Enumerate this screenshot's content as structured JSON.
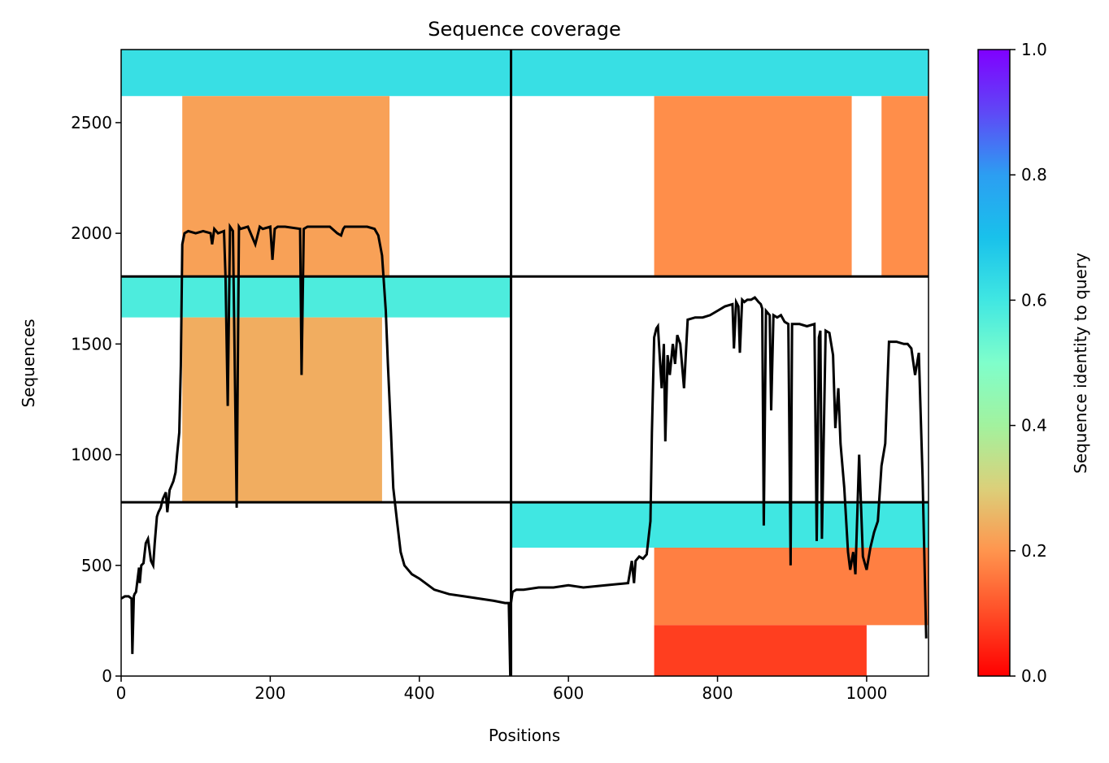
{
  "chart_data": {
    "type": "heatmap",
    "title": "Sequence coverage",
    "xlabel": "Positions",
    "ylabel": "Sequences",
    "xlim": [
      0,
      1083
    ],
    "ylim": [
      0,
      2830
    ],
    "xticks": [
      0,
      200,
      400,
      600,
      800,
      1000
    ],
    "yticks": [
      0,
      500,
      1000,
      1500,
      2000,
      2500
    ],
    "chain_boundaries_x": [
      523
    ],
    "group_boundaries_y": [
      785,
      1805
    ],
    "colorbar": {
      "label": "Sequence identity to query",
      "range": [
        0,
        1
      ],
      "ticks": [
        0.0,
        0.2,
        0.4,
        0.6,
        0.8,
        1.0
      ],
      "colormap": "rainbow_r"
    },
    "blocks": [
      {
        "x": [
          0,
          523
        ],
        "y": [
          2620,
          2830
        ],
        "identity": 0.62
      },
      {
        "x": [
          523,
          1083
        ],
        "y": [
          2620,
          2830
        ],
        "identity": 0.62
      },
      {
        "x": [
          82,
          360
        ],
        "y": [
          1805,
          2620
        ],
        "identity": 0.22
      },
      {
        "x": [
          715,
          980
        ],
        "y": [
          1805,
          2620
        ],
        "identity": 0.19
      },
      {
        "x": [
          1020,
          1083
        ],
        "y": [
          1805,
          2620
        ],
        "identity": 0.19
      },
      {
        "x": [
          0,
          523
        ],
        "y": [
          1620,
          1805
        ],
        "identity": 0.58
      },
      {
        "x": [
          82,
          350
        ],
        "y": [
          785,
          1620
        ],
        "identity": 0.24
      },
      {
        "x": [
          523,
          1083
        ],
        "y": [
          580,
          785
        ],
        "identity": 0.6
      },
      {
        "x": [
          715,
          1083
        ],
        "y": [
          230,
          580
        ],
        "identity": 0.17
      },
      {
        "x": [
          715,
          1000
        ],
        "y": [
          0,
          230
        ],
        "identity": 0.08
      }
    ],
    "coverage_line": {
      "x": [
        0,
        5,
        10,
        14,
        15,
        17,
        18,
        20,
        24,
        25,
        27,
        30,
        33,
        36,
        40,
        43,
        45,
        48,
        50,
        53,
        56,
        60,
        62,
        65,
        70,
        73,
        75,
        78,
        80,
        82,
        85,
        90,
        100,
        110,
        120,
        122,
        125,
        130,
        138,
        140,
        143,
        146,
        150,
        155,
        158,
        160,
        170,
        180,
        186,
        190,
        200,
        203,
        206,
        210,
        220,
        240,
        242,
        245,
        250,
        260,
        270,
        280,
        290,
        295,
        298,
        300,
        310,
        320,
        330,
        340,
        345,
        350,
        355,
        358,
        362,
        365,
        370,
        375,
        380,
        390,
        400,
        420,
        440,
        460,
        480,
        500,
        515,
        520,
        522,
        523,
        525,
        530,
        540,
        560,
        580,
        600,
        620,
        650,
        680,
        685,
        688,
        690,
        695,
        700,
        705,
        710,
        712,
        715,
        718,
        720,
        725,
        728,
        730,
        733,
        736,
        740,
        743,
        746,
        750,
        755,
        760,
        770,
        780,
        790,
        800,
        810,
        820,
        822,
        825,
        828,
        830,
        833,
        836,
        840,
        845,
        850,
        855,
        858,
        860,
        862,
        865,
        870,
        872,
        875,
        880,
        885,
        890,
        895,
        898,
        900,
        905,
        910,
        920,
        930,
        933,
        936,
        938,
        940,
        945,
        950,
        955,
        958,
        962,
        965,
        970,
        975,
        978,
        982,
        985,
        990,
        995,
        1000,
        1005,
        1010,
        1015,
        1020,
        1025,
        1030,
        1040,
        1050,
        1055,
        1060,
        1065,
        1070,
        1075,
        1080,
        1083
      ],
      "y": [
        350,
        360,
        360,
        350,
        100,
        360,
        370,
        380,
        490,
        420,
        500,
        510,
        600,
        620,
        520,
        500,
        600,
        720,
        740,
        760,
        800,
        830,
        740,
        840,
        880,
        920,
        1000,
        1100,
        1400,
        1950,
        2000,
        2010,
        2000,
        2010,
        2000,
        1950,
        2020,
        2000,
        2010,
        1800,
        1220,
        2030,
        2010,
        760,
        2030,
        2020,
        2030,
        1950,
        2030,
        2020,
        2030,
        1880,
        2020,
        2030,
        2030,
        2020,
        1360,
        2020,
        2030,
        2030,
        2030,
        2030,
        2000,
        1990,
        2020,
        2030,
        2030,
        2030,
        2030,
        2020,
        1990,
        1900,
        1650,
        1400,
        1100,
        850,
        700,
        560,
        500,
        460,
        440,
        390,
        370,
        360,
        350,
        340,
        330,
        330,
        0,
        330,
        380,
        390,
        390,
        400,
        400,
        410,
        400,
        410,
        420,
        520,
        420,
        520,
        540,
        530,
        550,
        700,
        1100,
        1530,
        1570,
        1580,
        1300,
        1500,
        1060,
        1450,
        1360,
        1500,
        1410,
        1540,
        1500,
        1300,
        1610,
        1620,
        1620,
        1630,
        1650,
        1670,
        1680,
        1480,
        1690,
        1670,
        1460,
        1700,
        1690,
        1700,
        1700,
        1710,
        1690,
        1680,
        1660,
        680,
        1650,
        1630,
        1200,
        1630,
        1620,
        1630,
        1600,
        1590,
        500,
        1590,
        1590,
        1590,
        1580,
        1590,
        610,
        1530,
        1560,
        620,
        1560,
        1550,
        1450,
        1120,
        1300,
        1050,
        850,
        560,
        480,
        560,
        460,
        1000,
        540,
        480,
        580,
        650,
        700,
        950,
        1050,
        1510,
        1510,
        1500,
        1500,
        1480,
        1360,
        1460,
        900,
        170
      ]
    }
  }
}
